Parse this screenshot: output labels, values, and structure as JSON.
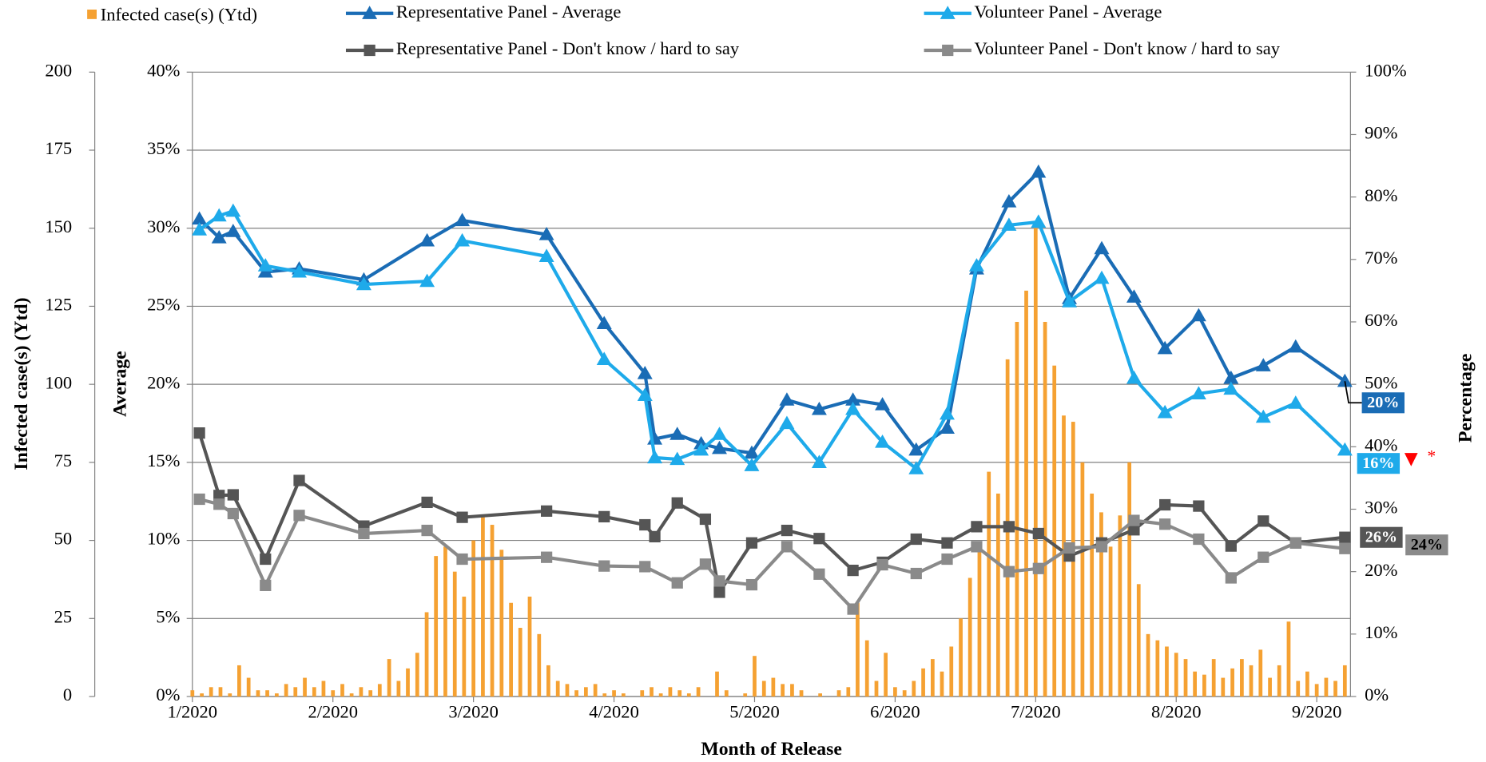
{
  "chart_data": {
    "type": "combo",
    "x_label": "Month of Release",
    "y_label": "Infected case(s) (Ytd)",
    "y2_label": "Average",
    "y3_label": "Percentage",
    "annotation": "*",
    "grid": true,
    "xlim": [
      1,
      9.24
    ],
    "xticks": [
      {
        "value": 1,
        "label": "1/2020"
      },
      {
        "value": 2,
        "label": "2/2020"
      },
      {
        "value": 3,
        "label": "3/2020"
      },
      {
        "value": 4,
        "label": "4/2020"
      },
      {
        "value": 5,
        "label": "5/2020"
      },
      {
        "value": 6,
        "label": "6/2020"
      },
      {
        "value": 7,
        "label": "7/2020"
      },
      {
        "value": 8,
        "label": "8/2020"
      },
      {
        "value": 9,
        "label": "9/2020"
      }
    ],
    "ylim": [
      0,
      200
    ],
    "yticks": [
      0,
      25,
      50,
      75,
      100,
      125,
      150,
      175,
      200
    ],
    "y2lim": [
      0,
      40
    ],
    "y2ticks": [
      {
        "value": 0,
        "label": "0%"
      },
      {
        "value": 5,
        "label": "5%"
      },
      {
        "value": 10,
        "label": "10%"
      },
      {
        "value": 15,
        "label": "15%"
      },
      {
        "value": 20,
        "label": "20%"
      },
      {
        "value": 25,
        "label": "25%"
      },
      {
        "value": 30,
        "label": "30%"
      },
      {
        "value": 35,
        "label": "35%"
      },
      {
        "value": 40,
        "label": "40%"
      }
    ],
    "y3lim": [
      0,
      100
    ],
    "y3ticks": [
      {
        "value": 0,
        "label": "0%"
      },
      {
        "value": 10,
        "label": "10%"
      },
      {
        "value": 20,
        "label": "20%"
      },
      {
        "value": 30,
        "label": "30%"
      },
      {
        "value": 40,
        "label": "40%"
      },
      {
        "value": 50,
        "label": "50%"
      },
      {
        "value": 60,
        "label": "60%"
      },
      {
        "value": 70,
        "label": "70%"
      },
      {
        "value": 80,
        "label": "80%"
      },
      {
        "value": 90,
        "label": "90%"
      },
      {
        "value": 100,
        "label": "100%"
      }
    ],
    "series": [
      {
        "name": "Infected case(s) (Ytd)",
        "type": "bar",
        "axis": "y",
        "color": "#f5a132",
        "x": [
          1,
          1.067,
          1.133,
          1.2,
          1.267,
          1.333,
          1.4,
          1.467,
          1.533,
          1.6,
          1.667,
          1.733,
          1.8,
          1.867,
          1.933,
          2,
          2.067,
          2.133,
          2.2,
          2.267,
          2.333,
          2.4,
          2.467,
          2.533,
          2.6,
          2.667,
          2.733,
          2.8,
          2.867,
          2.933,
          3,
          3.067,
          3.133,
          3.2,
          3.267,
          3.333,
          3.4,
          3.467,
          3.533,
          3.6,
          3.667,
          3.733,
          3.8,
          3.867,
          3.933,
          4,
          4.067,
          4.133,
          4.2,
          4.267,
          4.333,
          4.4,
          4.467,
          4.533,
          4.6,
          4.667,
          4.733,
          4.8,
          4.867,
          4.933,
          5,
          5.067,
          5.133,
          5.2,
          5.267,
          5.333,
          5.4,
          5.467,
          5.533,
          5.6,
          5.667,
          5.733,
          5.8,
          5.867,
          5.933,
          6,
          6.067,
          6.133,
          6.2,
          6.267,
          6.333,
          6.4,
          6.467,
          6.533,
          6.6,
          6.667,
          6.733,
          6.8,
          6.867,
          6.933,
          7,
          7.067,
          7.133,
          7.2,
          7.267,
          7.333,
          7.4,
          7.467,
          7.533,
          7.6,
          7.667,
          7.733,
          7.8,
          7.867,
          7.933,
          8,
          8.067,
          8.133,
          8.2,
          8.267,
          8.333,
          8.4,
          8.467,
          8.533,
          8.6,
          8.667,
          8.733,
          8.8,
          8.867,
          8.933,
          9,
          9.067,
          9.133,
          9.2
        ],
        "values": [
          2,
          1,
          3,
          3,
          1,
          10,
          6,
          2,
          2,
          1,
          4,
          3,
          6,
          3,
          5,
          2,
          4,
          1,
          3,
          2,
          4,
          12,
          5,
          9,
          14,
          27,
          45,
          48,
          40,
          32,
          50,
          58,
          55,
          47,
          30,
          22,
          32,
          20,
          10,
          5,
          4,
          2,
          3,
          4,
          1,
          2,
          1,
          0,
          2,
          3,
          1,
          3,
          2,
          1,
          3,
          0,
          8,
          2,
          0,
          1,
          13,
          5,
          6,
          4,
          4,
          2,
          0,
          1,
          0,
          2,
          3,
          30,
          18,
          5,
          14,
          3,
          2,
          5,
          9,
          12,
          8,
          16,
          25,
          38,
          48,
          72,
          65,
          108,
          120,
          130,
          150,
          120,
          106,
          90,
          88,
          75,
          65,
          59,
          48,
          58,
          75,
          36,
          20,
          18,
          16,
          14,
          12,
          8,
          7,
          12,
          6,
          9,
          12,
          10,
          15,
          6,
          10,
          24,
          5,
          8,
          4,
          6,
          5,
          10
        ]
      },
      {
        "name": "Representative Panel - Average",
        "type": "line",
        "axis": "y2",
        "color": "#1a6cb5",
        "marker": "triangle",
        "end_label": "20%",
        "x": [
          1.05,
          1.19,
          1.29,
          1.52,
          1.76,
          2.22,
          2.67,
          2.92,
          3.52,
          3.93,
          4.22,
          4.29,
          4.45,
          4.62,
          4.75,
          4.98,
          5.23,
          5.46,
          5.7,
          5.91,
          6.15,
          6.37,
          6.58,
          6.81,
          7.02,
          7.24,
          7.47,
          7.7,
          7.92,
          8.16,
          8.39,
          8.62,
          8.85,
          9.2
        ],
        "values": [
          30.6,
          29.4,
          29.8,
          27.2,
          27.4,
          26.7,
          29.2,
          30.5,
          29.6,
          23.9,
          20.7,
          16.5,
          16.8,
          16.2,
          15.9,
          15.6,
          19.0,
          18.4,
          19.0,
          18.7,
          15.8,
          17.2,
          27.4,
          31.7,
          33.6,
          25.5,
          28.7,
          25.6,
          22.3,
          24.4,
          20.4,
          21.2,
          22.4,
          20.2
        ]
      },
      {
        "name": "Volunteer Panel - Average",
        "type": "line",
        "axis": "y2",
        "color": "#1eaaea",
        "marker": "triangle",
        "end_label": "16%",
        "x": [
          1.05,
          1.19,
          1.29,
          1.52,
          1.76,
          2.22,
          2.67,
          2.92,
          3.52,
          3.93,
          4.22,
          4.29,
          4.45,
          4.62,
          4.75,
          4.98,
          5.23,
          5.46,
          5.7,
          5.91,
          6.15,
          6.37,
          6.58,
          6.81,
          7.02,
          7.24,
          7.47,
          7.7,
          7.92,
          8.16,
          8.39,
          8.62,
          8.85,
          9.2
        ],
        "values": [
          29.9,
          30.8,
          31.1,
          27.6,
          27.2,
          26.4,
          26.6,
          29.2,
          28.2,
          21.6,
          19.3,
          15.3,
          15.2,
          15.8,
          16.8,
          14.8,
          17.5,
          15.0,
          18.4,
          16.3,
          14.6,
          18.1,
          27.6,
          30.2,
          30.4,
          25.3,
          26.8,
          20.4,
          18.2,
          19.4,
          19.7,
          17.9,
          18.8,
          15.8
        ]
      },
      {
        "name": "Representative Panel - Don't know / hard to say",
        "type": "line",
        "axis": "y3",
        "color": "#555555",
        "marker": "square",
        "end_label": "26%",
        "x": [
          1.05,
          1.19,
          1.29,
          1.52,
          1.76,
          2.22,
          2.67,
          2.92,
          3.52,
          3.93,
          4.22,
          4.29,
          4.45,
          4.65,
          4.75,
          4.98,
          5.23,
          5.46,
          5.7,
          5.91,
          6.15,
          6.37,
          6.58,
          6.81,
          7.02,
          7.24,
          7.47,
          7.7,
          7.92,
          8.16,
          8.39,
          8.62,
          8.85,
          9.2
        ],
        "values": [
          42.2,
          32.2,
          32.3,
          22.0,
          34.6,
          27.3,
          31.1,
          28.7,
          29.7,
          28.8,
          27.5,
          25.6,
          31.0,
          28.4,
          16.7,
          24.6,
          26.6,
          25.3,
          20.2,
          21.5,
          25.2,
          24.6,
          27.2,
          27.2,
          26.1,
          22.5,
          24.6,
          26.7,
          30.7,
          30.5,
          24.1,
          28.1,
          24.6,
          25.5
        ]
      },
      {
        "name": "Volunteer Panel - Don't know / hard to say",
        "type": "line",
        "axis": "y3",
        "color": "#8a8a8a",
        "marker": "square",
        "end_label": "24%",
        "x": [
          1.05,
          1.19,
          1.29,
          1.52,
          1.76,
          2.22,
          2.67,
          2.92,
          3.52,
          3.93,
          4.22,
          4.45,
          4.65,
          4.75,
          4.98,
          5.23,
          5.46,
          5.7,
          5.91,
          6.15,
          6.37,
          6.58,
          6.81,
          7.02,
          7.24,
          7.47,
          7.7,
          7.92,
          8.16,
          8.39,
          8.62,
          8.85,
          9.2
        ],
        "values": [
          31.6,
          30.8,
          29.3,
          17.8,
          29.0,
          26.1,
          26.6,
          22.0,
          22.3,
          20.9,
          20.8,
          18.2,
          21.2,
          18.5,
          17.9,
          24.0,
          19.6,
          14.0,
          21.1,
          19.7,
          22.0,
          24.0,
          20.0,
          20.5,
          23.8,
          24.0,
          28.2,
          27.6,
          25.2,
          19.0,
          22.3,
          24.6,
          23.7
        ]
      }
    ]
  }
}
